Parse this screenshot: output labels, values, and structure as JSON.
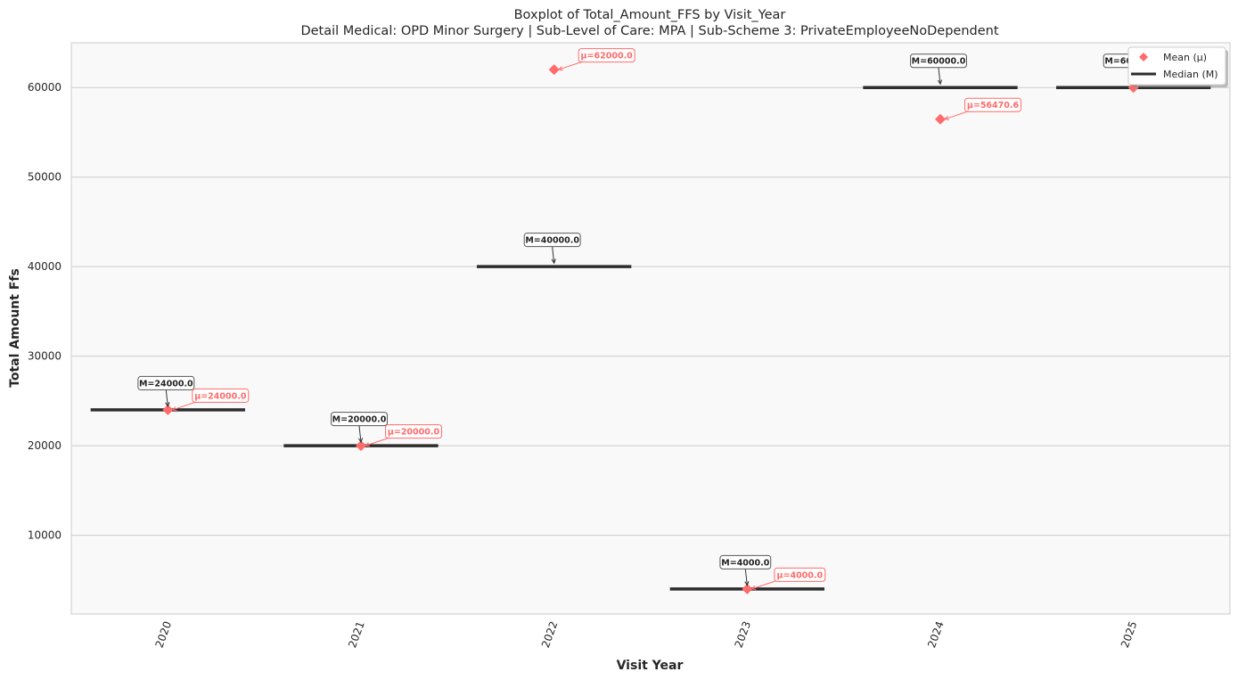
{
  "chart_data": {
    "type": "box",
    "title": "Boxplot of Total_Amount_FFS by Visit_Year",
    "subtitle": "Detail Medical: OPD Minor Surgery | Sub-Level of Care: MPA | Sub-Scheme 3: PrivateEmployeeNoDependent",
    "xlabel": "Visit Year",
    "ylabel": "Total Amount Ffs",
    "categories": [
      "2020",
      "2021",
      "2022",
      "2023",
      "2024",
      "2025"
    ],
    "median": [
      24000,
      20000,
      40000,
      4000,
      60000,
      60000
    ],
    "mean": [
      24000,
      20000,
      62000,
      4000,
      56470.6,
      60000
    ],
    "median_labels": [
      "M=24000.0",
      "M=20000.0",
      "M=40000.0",
      "M=4000.0",
      "M=60000.0",
      "M=60000.0"
    ],
    "mean_labels": [
      "μ=24000.0",
      "μ=20000.0",
      "μ=62000.0",
      "μ=4000.0",
      "μ=56470.6",
      ""
    ],
    "yticks": [
      10000,
      20000,
      30000,
      40000,
      50000,
      60000
    ],
    "ytick_labels": [
      "10000",
      "20000",
      "30000",
      "40000",
      "50000",
      "60000"
    ],
    "ylim": [
      1200,
      65000
    ],
    "grid": "horizontal",
    "legend": {
      "placement": "top-right",
      "entries": [
        {
          "label": "Mean (μ)",
          "marker": "diamond",
          "color": "#ff6b6b"
        },
        {
          "label": "Median (M)",
          "marker": "line",
          "color": "#2d2d2d"
        }
      ]
    },
    "colors": {
      "mean": "#ff6b6b",
      "median": "#2d2d2d",
      "plot_bg": "#f9f9f9",
      "grid": "#cccccc"
    }
  }
}
